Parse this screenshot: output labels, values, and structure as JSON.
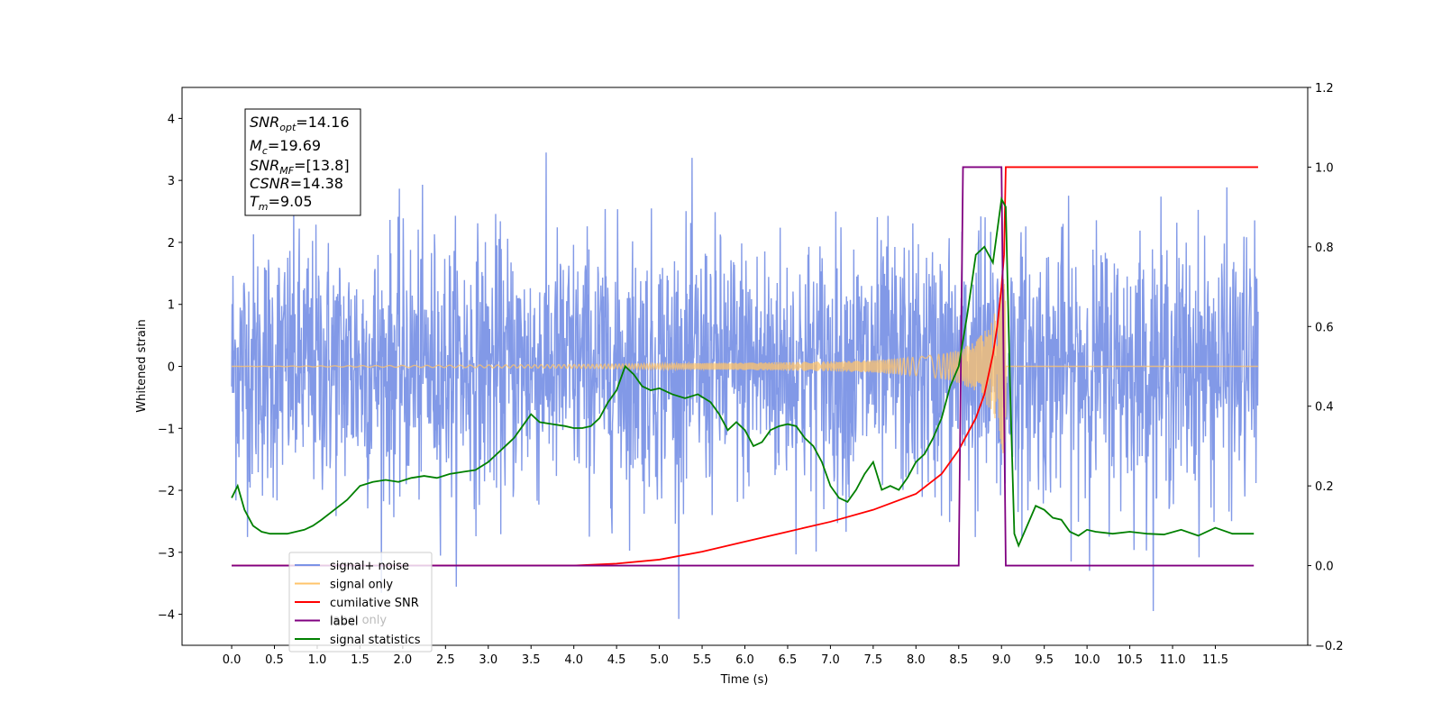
{
  "chart_data": {
    "type": "line",
    "xlabel": "Time (s)",
    "ylabel": "Whitened strain",
    "xlim": [
      -0.58,
      12.58
    ],
    "ylim": [
      -4.5,
      4.5
    ],
    "y2lim": [
      -0.2,
      1.2
    ],
    "x_ticks": [
      "0.0",
      "0.5",
      "1.0",
      "1.5",
      "2.0",
      "2.5",
      "3.0",
      "3.5",
      "4.0",
      "4.5",
      "5.0",
      "5.5",
      "6.0",
      "6.5",
      "7.0",
      "7.5",
      "8.0",
      "8.5",
      "9.0",
      "9.5",
      "10.0",
      "10.5",
      "11.0",
      "11.5"
    ],
    "y_ticks": [
      "4",
      "3",
      "2",
      "1",
      "0",
      "−1",
      "−2",
      "−3",
      "−4"
    ],
    "y2_ticks": [
      "1.2",
      "1.0",
      "0.8",
      "0.6",
      "0.4",
      "0.2",
      "0.0",
      "−0.2"
    ],
    "info_box": {
      "snr_opt": {
        "sym": "SNR",
        "sub": "opt",
        "val": "=14.16"
      },
      "mc": {
        "sym": "M",
        "sub": "c",
        "val": "=19.69"
      },
      "snr_mf": {
        "sym": "SNR",
        "sub": "MF",
        "val": "=[13.8]"
      },
      "csnr": {
        "sym": "CSNR",
        "sub": "",
        "val": "=14.38"
      },
      "tm": {
        "sym": "T",
        "sub": "m",
        "val": "=9.05"
      }
    },
    "legend": {
      "placement": "lower-left",
      "items": [
        {
          "label": "signal+ noise",
          "color": "#7b93e6"
        },
        {
          "label": "signal only",
          "color": "#ffc46b"
        },
        {
          "label": "cumilative SNR",
          "color": "#ff0000"
        },
        {
          "label": "label",
          "color": "#800080"
        },
        {
          "label": "signal statistics",
          "color": "#008000"
        }
      ],
      "hidden_label": "label only"
    },
    "series": [
      {
        "name": "signal+ noise",
        "axis": "left",
        "color": "#7b93e6",
        "noise_model": {
          "t_start": 0.0,
          "t_end": 12.0,
          "std": 1.05,
          "max_abs": 4.1
        }
      },
      {
        "name": "signal only",
        "axis": "left",
        "color": "#ffc46b",
        "chirp_envelope": {
          "t": [
            0.0,
            4.0,
            6.0,
            7.0,
            7.5,
            8.0,
            8.3,
            8.5,
            8.7,
            8.9,
            9.0,
            9.05
          ],
          "amp": [
            0.0,
            0.03,
            0.06,
            0.08,
            0.1,
            0.15,
            0.2,
            0.27,
            0.4,
            0.75,
            1.3,
            1.8
          ]
        }
      },
      {
        "name": "cumilative SNR",
        "axis": "right",
        "color": "#ff0000",
        "x": [
          0.0,
          4.0,
          4.5,
          5.0,
          5.5,
          6.0,
          6.5,
          7.0,
          7.5,
          8.0,
          8.3,
          8.5,
          8.7,
          8.8,
          8.9,
          8.95,
          9.0,
          9.03,
          9.05,
          12.0
        ],
        "y": [
          0.0,
          0.0,
          0.005,
          0.015,
          0.035,
          0.06,
          0.085,
          0.11,
          0.14,
          0.18,
          0.23,
          0.29,
          0.37,
          0.43,
          0.53,
          0.6,
          0.7,
          0.78,
          1.0,
          1.0
        ]
      },
      {
        "name": "label",
        "axis": "right",
        "color": "#800080",
        "x": [
          0.0,
          8.5,
          8.55,
          9.0,
          9.05,
          11.95
        ],
        "y": [
          0.0,
          0.0,
          1.0,
          1.0,
          0.0,
          0.0
        ]
      },
      {
        "name": "signal statistics",
        "axis": "right",
        "color": "#008000",
        "x": [
          0.0,
          0.07,
          0.15,
          0.25,
          0.35,
          0.45,
          0.55,
          0.65,
          0.75,
          0.85,
          0.95,
          1.05,
          1.2,
          1.35,
          1.5,
          1.65,
          1.8,
          1.95,
          2.1,
          2.25,
          2.4,
          2.55,
          2.7,
          2.85,
          3.0,
          3.1,
          3.2,
          3.3,
          3.4,
          3.5,
          3.6,
          3.75,
          3.9,
          4.0,
          4.1,
          4.2,
          4.3,
          4.4,
          4.5,
          4.6,
          4.7,
          4.8,
          4.9,
          5.0,
          5.15,
          5.3,
          5.45,
          5.6,
          5.7,
          5.8,
          5.9,
          6.0,
          6.1,
          6.2,
          6.3,
          6.4,
          6.5,
          6.6,
          6.7,
          6.8,
          6.9,
          7.0,
          7.1,
          7.2,
          7.3,
          7.4,
          7.5,
          7.6,
          7.7,
          7.8,
          7.9,
          8.0,
          8.1,
          8.2,
          8.3,
          8.4,
          8.5,
          8.6,
          8.7,
          8.8,
          8.9,
          9.0,
          9.05,
          9.1,
          9.15,
          9.2,
          9.3,
          9.4,
          9.5,
          9.6,
          9.7,
          9.8,
          9.9,
          10.0,
          10.1,
          10.3,
          10.5,
          10.7,
          10.9,
          11.1,
          11.3,
          11.5,
          11.7,
          11.95
        ],
        "y": [
          0.17,
          0.2,
          0.14,
          0.1,
          0.085,
          0.08,
          0.08,
          0.08,
          0.085,
          0.09,
          0.1,
          0.115,
          0.14,
          0.165,
          0.2,
          0.21,
          0.215,
          0.21,
          0.22,
          0.225,
          0.22,
          0.23,
          0.235,
          0.24,
          0.26,
          0.28,
          0.3,
          0.32,
          0.35,
          0.38,
          0.36,
          0.355,
          0.35,
          0.345,
          0.345,
          0.35,
          0.37,
          0.41,
          0.44,
          0.5,
          0.48,
          0.45,
          0.44,
          0.445,
          0.43,
          0.42,
          0.43,
          0.41,
          0.38,
          0.34,
          0.36,
          0.34,
          0.3,
          0.31,
          0.34,
          0.35,
          0.355,
          0.35,
          0.32,
          0.3,
          0.26,
          0.2,
          0.17,
          0.16,
          0.19,
          0.23,
          0.26,
          0.19,
          0.2,
          0.19,
          0.22,
          0.26,
          0.28,
          0.32,
          0.37,
          0.45,
          0.5,
          0.63,
          0.78,
          0.8,
          0.76,
          0.92,
          0.9,
          0.45,
          0.08,
          0.05,
          0.1,
          0.15,
          0.14,
          0.12,
          0.115,
          0.085,
          0.075,
          0.09,
          0.085,
          0.08,
          0.085,
          0.08,
          0.078,
          0.09,
          0.075,
          0.095,
          0.08,
          0.08
        ]
      }
    ]
  }
}
